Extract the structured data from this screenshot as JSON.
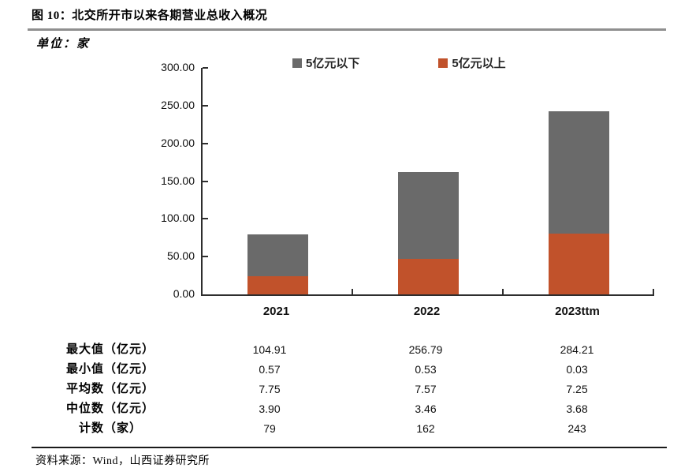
{
  "figure": {
    "title": "图 10：北交所开市以来各期营业总收入概况",
    "unit_label": "单位：家",
    "source": "资料来源：Wind，山西证券研究所"
  },
  "colors": {
    "bar_below5": "#6a6a6a",
    "bar_above5": "#c1522b",
    "axis": "#2e2e2e",
    "title_rule": "#8f8f8f",
    "bottom_rule": "#1a1a1a"
  },
  "chart_data": {
    "type": "bar",
    "stacked": true,
    "title": "图 10：北交所开市以来各期营业总收入概况",
    "unit": "家",
    "categories": [
      "2021",
      "2022",
      "2023ttm"
    ],
    "series": [
      {
        "name": "5亿元以下",
        "color": "#6a6a6a",
        "stack_position": "top",
        "values": [
          55,
          115,
          163
        ]
      },
      {
        "name": "5亿元以上",
        "color": "#c1522b",
        "stack_position": "bottom",
        "values": [
          24,
          47,
          80
        ]
      }
    ],
    "totals": [
      79,
      162,
      243
    ],
    "ylim": [
      0,
      300
    ],
    "ytick_step": 50,
    "ytick_labels": [
      "0.00",
      "50.00",
      "100.00",
      "150.00",
      "200.00",
      "250.00",
      "300.00"
    ],
    "grid": false,
    "legend_position": "top"
  },
  "stats_table": {
    "columns": [
      "2021",
      "2022",
      "2023ttm"
    ],
    "rows": [
      {
        "label": "最大值（亿元）",
        "values": [
          "104.91",
          "256.79",
          "284.21"
        ]
      },
      {
        "label": "最小值（亿元）",
        "values": [
          "0.57",
          "0.53",
          "0.03"
        ]
      },
      {
        "label": "平均数（亿元）",
        "values": [
          "7.75",
          "7.57",
          "7.25"
        ]
      },
      {
        "label": "中位数（亿元）",
        "values": [
          "3.90",
          "3.46",
          "3.68"
        ]
      },
      {
        "label": "计数（家）",
        "values": [
          "79",
          "162",
          "243"
        ]
      }
    ]
  }
}
